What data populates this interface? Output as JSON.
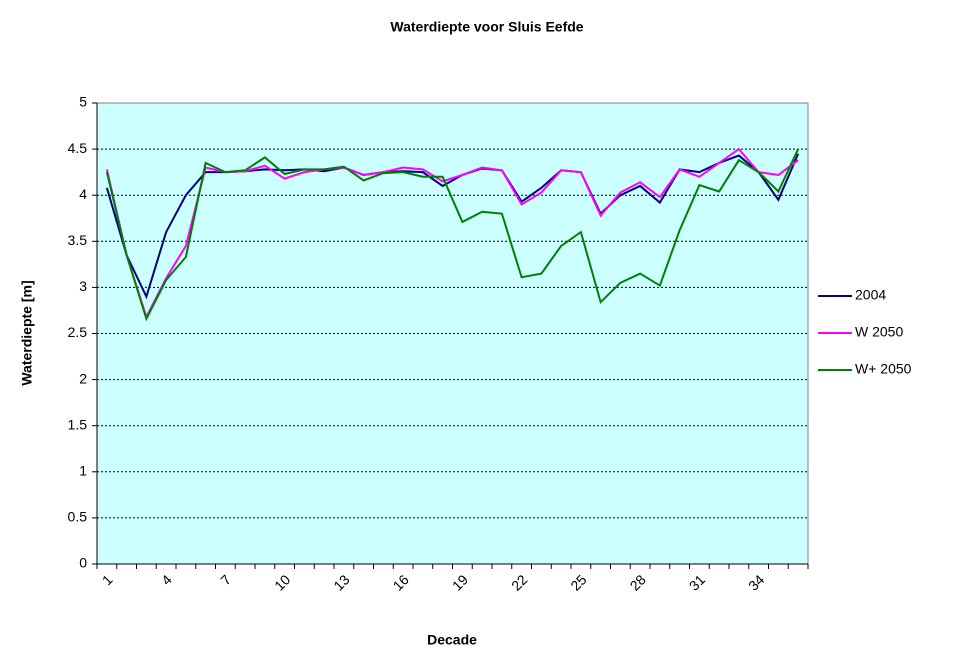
{
  "chart_data": {
    "type": "line",
    "title": "Waterdiepte voor Sluis Eefde",
    "x_label": "Decade",
    "y_label": "Waterdiepte [m]",
    "categories": [
      "1",
      null,
      null,
      "4",
      null,
      null,
      "7",
      null,
      null,
      "10",
      null,
      null,
      "13",
      null,
      null,
      "16",
      null,
      null,
      "19",
      null,
      null,
      "22",
      null,
      null,
      "25",
      null,
      null,
      "28",
      null,
      null,
      "31",
      null,
      null,
      "34",
      null,
      null
    ],
    "series": [
      {
        "name": "2004",
        "color": "#000080",
        "values": [
          4.08,
          3.35,
          2.9,
          3.6,
          4.0,
          4.25,
          4.25,
          4.26,
          4.28,
          4.27,
          4.28,
          4.26,
          4.3,
          4.22,
          4.25,
          4.26,
          4.25,
          4.1,
          4.22,
          4.29,
          4.27,
          3.93,
          4.08,
          4.27,
          4.25,
          3.8,
          4.0,
          4.1,
          3.92,
          4.28,
          4.25,
          4.35,
          4.43,
          4.25,
          3.95,
          4.45
        ]
      },
      {
        "name": "W 2050",
        "color": "#ff00ff",
        "values": [
          4.28,
          3.35,
          2.68,
          3.1,
          3.45,
          4.3,
          4.25,
          4.26,
          4.32,
          4.18,
          4.25,
          4.28,
          4.3,
          4.22,
          4.25,
          4.3,
          4.28,
          4.15,
          4.22,
          4.3,
          4.27,
          3.9,
          4.03,
          4.27,
          4.25,
          3.78,
          4.03,
          4.14,
          3.98,
          4.28,
          4.2,
          4.35,
          4.5,
          4.25,
          4.22,
          4.38
        ]
      },
      {
        "name": "W+ 2050",
        "color": "#008000",
        "values": [
          4.25,
          3.35,
          2.66,
          3.08,
          3.33,
          4.35,
          4.25,
          4.27,
          4.41,
          4.23,
          4.28,
          4.28,
          4.31,
          4.16,
          4.24,
          4.25,
          4.2,
          4.2,
          3.71,
          3.82,
          3.8,
          3.11,
          3.15,
          3.45,
          3.6,
          2.84,
          3.05,
          3.15,
          3.02,
          3.62,
          4.11,
          4.04,
          4.38,
          4.25,
          4.04,
          4.5
        ]
      }
    ],
    "ylim": [
      0,
      5
    ],
    "yticks": [
      0,
      0.5,
      1,
      1.5,
      2,
      2.5,
      3,
      3.5,
      4,
      4.5,
      5
    ],
    "grid": true,
    "background": "#ccffff",
    "legend": "right"
  }
}
